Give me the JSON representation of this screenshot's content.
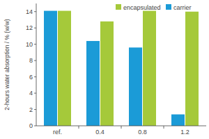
{
  "chart_data": {
    "type": "bar",
    "y_label": "2-hours water absorption / % (w/w)",
    "categories": [
      "ref.",
      "0.4",
      "0.8",
      "1.2"
    ],
    "series": [
      {
        "name": "carrier",
        "color": "#1b9bd7",
        "values": [
          14.1,
          10.4,
          9.6,
          1.4
        ]
      },
      {
        "name": "encapsulated",
        "color": "#a5c93a",
        "values": [
          14.1,
          12.8,
          14.1,
          14.0
        ]
      }
    ],
    "ylim": [
      0,
      15
    ],
    "yticks": [
      0,
      2,
      4,
      6,
      8,
      10,
      12,
      14
    ],
    "grid": false,
    "legend": "top"
  }
}
